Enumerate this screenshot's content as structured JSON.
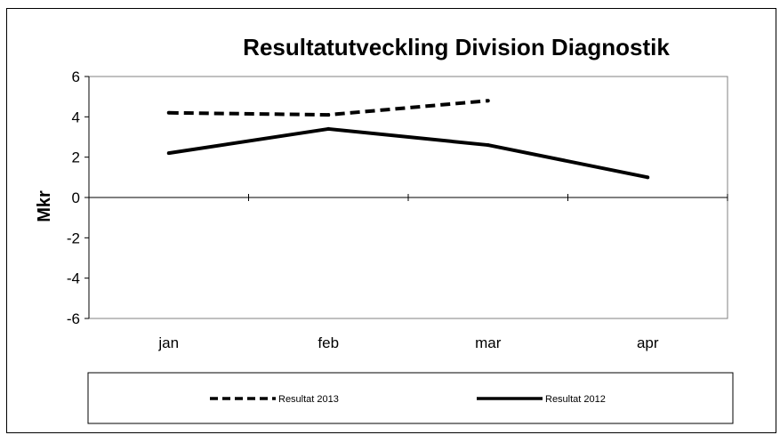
{
  "chart_data": {
    "type": "line",
    "title": "Resultatutveckling Division Diagnostik",
    "xlabel": "",
    "ylabel": "Mkr",
    "categories": [
      "jan",
      "feb",
      "mar",
      "apr"
    ],
    "ylim": [
      -6,
      6
    ],
    "yticks": [
      "6",
      "4",
      "2",
      "0",
      "-2",
      "-4",
      "-6"
    ],
    "grid": false,
    "legend_position": "bottom",
    "series": [
      {
        "name": "Resultat 2013",
        "values": [
          4.2,
          4.1,
          4.8,
          null
        ],
        "style": "dashed",
        "color": "#000000"
      },
      {
        "name": "Resultat 2012",
        "values": [
          2.2,
          3.4,
          2.6,
          1.0
        ],
        "style": "solid",
        "color": "#000000"
      }
    ]
  }
}
